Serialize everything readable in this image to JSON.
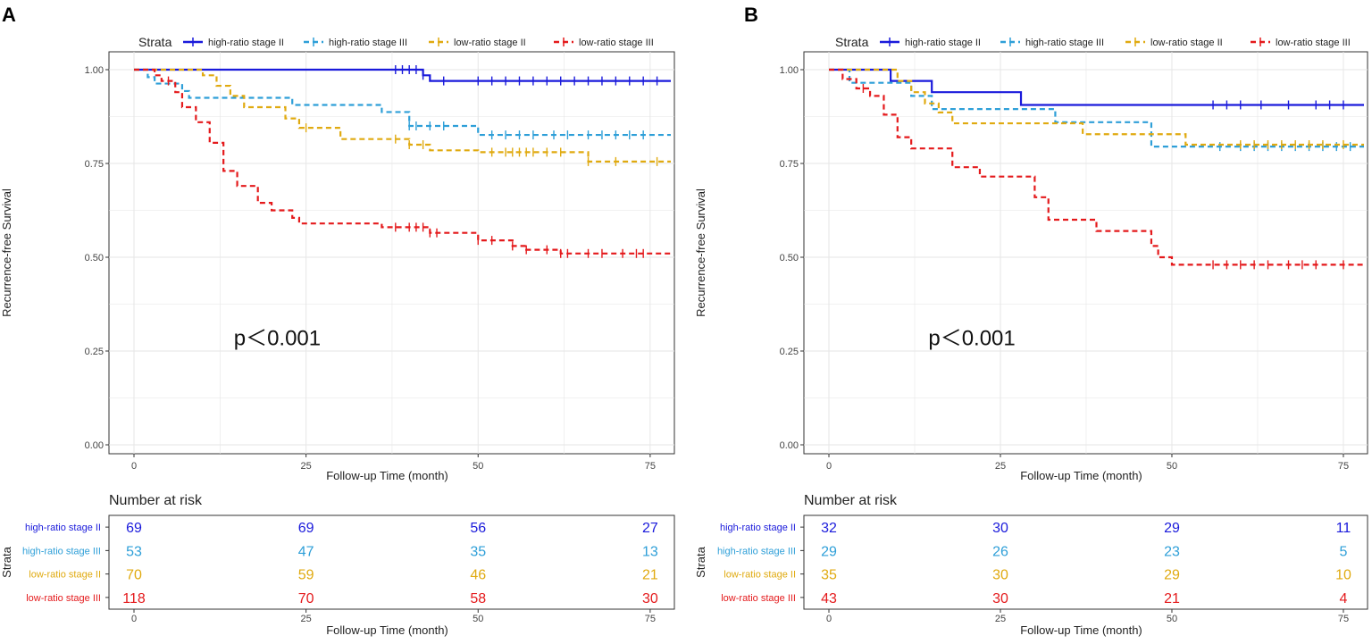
{
  "colors": {
    "high_ratio_stage_II": "#1a1adb",
    "high_ratio_stage_III": "#2e9fd8",
    "low_ratio_stage_II": "#e0aa10",
    "low_ratio_stage_III": "#e41a1c",
    "grid": "#e6e6e6",
    "axis": "#333333"
  },
  "legend_title": "Strata",
  "strata_axis_label": "Strata",
  "risk_title": "Number at risk",
  "chart_data": [
    {
      "panel": "A",
      "type": "line",
      "title": "",
      "xlabel": "Follow-up Time (month)",
      "ylabel": "Recurrence-free Survival",
      "xlim": [
        0,
        78
      ],
      "ylim": [
        0,
        1
      ],
      "xticks": [
        "0",
        "25",
        "50",
        "75"
      ],
      "yticks": [
        "0.00",
        "0.25",
        "0.50",
        "0.75",
        "1.00"
      ],
      "annotation": "p＜0.001",
      "series": [
        {
          "name": "high-ratio stage II",
          "color_key": "high_ratio_stage_II",
          "dash": "",
          "steps": [
            [
              0,
              1.0
            ],
            [
              42,
              0.985
            ],
            [
              43,
              0.97
            ],
            [
              78,
              0.97
            ]
          ],
          "censors": [
            38,
            39,
            40,
            41,
            42,
            45,
            50,
            52,
            54,
            56,
            58,
            60,
            62,
            64,
            66,
            68,
            70,
            72,
            74,
            76
          ]
        },
        {
          "name": "high-ratio stage III",
          "color_key": "high_ratio_stage_III",
          "dash": "6,4",
          "steps": [
            [
              0,
              1.0
            ],
            [
              2,
              0.98
            ],
            [
              3,
              0.963
            ],
            [
              7,
              0.943
            ],
            [
              8,
              0.925
            ],
            [
              23,
              0.906
            ],
            [
              36,
              0.887
            ],
            [
              40,
              0.85
            ],
            [
              50,
              0.826
            ],
            [
              78,
              0.826
            ]
          ],
          "censors": [
            40,
            41,
            43,
            45,
            52,
            54,
            56,
            58,
            61,
            63,
            66,
            68,
            70,
            72,
            74
          ]
        },
        {
          "name": "low-ratio stage II",
          "color_key": "low_ratio_stage_II",
          "dash": "6,4",
          "steps": [
            [
              0,
              1.0
            ],
            [
              10,
              0.985
            ],
            [
              12,
              0.957
            ],
            [
              14,
              0.93
            ],
            [
              16,
              0.9
            ],
            [
              22,
              0.87
            ],
            [
              24,
              0.845
            ],
            [
              30,
              0.815
            ],
            [
              40,
              0.8
            ],
            [
              43,
              0.785
            ],
            [
              50,
              0.78
            ],
            [
              66,
              0.755
            ],
            [
              78,
              0.755
            ]
          ],
          "censors": [
            25,
            38,
            40,
            42,
            52,
            54,
            55,
            56,
            57,
            58,
            60,
            62,
            66,
            70,
            76
          ]
        },
        {
          "name": "low-ratio stage III",
          "color_key": "low_ratio_stage_III",
          "dash": "6,4",
          "steps": [
            [
              0,
              1.0
            ],
            [
              3,
              0.985
            ],
            [
              4,
              0.97
            ],
            [
              6,
              0.94
            ],
            [
              7,
              0.9
            ],
            [
              9,
              0.86
            ],
            [
              11,
              0.805
            ],
            [
              13,
              0.73
            ],
            [
              15,
              0.69
            ],
            [
              18,
              0.645
            ],
            [
              20,
              0.625
            ],
            [
              23,
              0.605
            ],
            [
              24,
              0.59
            ],
            [
              36,
              0.58
            ],
            [
              43,
              0.565
            ],
            [
              50,
              0.545
            ],
            [
              55,
              0.53
            ],
            [
              57,
              0.52
            ],
            [
              62,
              0.51
            ],
            [
              78,
              0.505
            ]
          ],
          "censors": [
            5,
            38,
            40,
            41,
            42,
            43,
            44,
            50,
            52,
            55,
            57,
            60,
            62,
            63,
            66,
            68,
            71,
            73,
            74
          ]
        }
      ],
      "risk_table": {
        "xticks": [
          "0",
          "25",
          "50",
          "75"
        ],
        "rows": [
          {
            "label": "high-ratio stage II",
            "color_key": "high_ratio_stage_II",
            "values": [
              "69",
              "69",
              "56",
              "27"
            ]
          },
          {
            "label": "high-ratio stage III",
            "color_key": "high_ratio_stage_III",
            "values": [
              "53",
              "47",
              "35",
              "13"
            ]
          },
          {
            "label": "low-ratio stage II",
            "color_key": "low_ratio_stage_II",
            "values": [
              "70",
              "59",
              "46",
              "21"
            ]
          },
          {
            "label": "low-ratio stage III",
            "color_key": "low_ratio_stage_III",
            "values": [
              "118",
              "70",
              "58",
              "30"
            ]
          }
        ],
        "xlabel": "Follow-up Time (month)"
      }
    },
    {
      "panel": "B",
      "type": "line",
      "title": "",
      "xlabel": "Follow-up Time (month)",
      "ylabel": "Recurrence-free Survival",
      "xlim": [
        0,
        78
      ],
      "ylim": [
        0,
        1
      ],
      "xticks": [
        "0",
        "25",
        "50",
        "75"
      ],
      "yticks": [
        "0.00",
        "0.25",
        "0.50",
        "0.75",
        "1.00"
      ],
      "annotation": "p＜0.001",
      "series": [
        {
          "name": "high-ratio stage II",
          "color_key": "high_ratio_stage_II",
          "dash": "",
          "steps": [
            [
              0,
              1.0
            ],
            [
              9,
              0.97
            ],
            [
              15,
              0.94
            ],
            [
              28,
              0.906
            ],
            [
              78,
              0.906
            ]
          ],
          "censors": [
            56,
            58,
            60,
            63,
            67,
            71,
            73,
            75
          ]
        },
        {
          "name": "high-ratio stage III",
          "color_key": "high_ratio_stage_III",
          "dash": "6,4",
          "steps": [
            [
              0,
              1.0
            ],
            [
              3,
              0.965
            ],
            [
              12,
              0.93
            ],
            [
              15,
              0.895
            ],
            [
              33,
              0.86
            ],
            [
              47,
              0.795
            ],
            [
              78,
              0.795
            ]
          ],
          "censors": [
            57,
            60,
            62,
            64,
            66,
            68,
            70,
            72,
            74,
            76
          ]
        },
        {
          "name": "low-ratio stage II",
          "color_key": "low_ratio_stage_II",
          "dash": "6,4",
          "steps": [
            [
              0,
              1.0
            ],
            [
              10,
              0.97
            ],
            [
              12,
              0.94
            ],
            [
              14,
              0.91
            ],
            [
              16,
              0.886
            ],
            [
              18,
              0.857
            ],
            [
              37,
              0.828
            ],
            [
              47,
              0.828
            ],
            [
              52,
              0.8
            ],
            [
              78,
              0.8
            ]
          ],
          "censors": [
            60,
            62,
            64,
            66,
            68,
            70,
            72,
            75
          ]
        },
        {
          "name": "low-ratio stage III",
          "color_key": "low_ratio_stage_III",
          "dash": "6,4",
          "steps": [
            [
              0,
              1.0
            ],
            [
              2,
              0.975
            ],
            [
              4,
              0.95
            ],
            [
              6,
              0.93
            ],
            [
              8,
              0.88
            ],
            [
              10,
              0.82
            ],
            [
              12,
              0.79
            ],
            [
              18,
              0.74
            ],
            [
              22,
              0.715
            ],
            [
              30,
              0.66
            ],
            [
              32,
              0.6
            ],
            [
              39,
              0.57
            ],
            [
              47,
              0.53
            ],
            [
              48,
              0.5
            ],
            [
              50,
              0.48
            ],
            [
              78,
              0.48
            ]
          ],
          "censors": [
            5,
            56,
            58,
            60,
            62,
            64,
            67,
            69,
            71,
            75
          ]
        }
      ],
      "risk_table": {
        "xticks": [
          "0",
          "25",
          "50",
          "75"
        ],
        "rows": [
          {
            "label": "high-ratio stage II",
            "color_key": "high_ratio_stage_II",
            "values": [
              "32",
              "30",
              "29",
              "11"
            ]
          },
          {
            "label": "high-ratio stage III",
            "color_key": "high_ratio_stage_III",
            "values": [
              "29",
              "26",
              "23",
              "5"
            ]
          },
          {
            "label": "low-ratio stage II",
            "color_key": "low_ratio_stage_II",
            "values": [
              "35",
              "30",
              "29",
              "10"
            ]
          },
          {
            "label": "low-ratio stage III",
            "color_key": "low_ratio_stage_III",
            "values": [
              "43",
              "30",
              "21",
              "4"
            ]
          }
        ],
        "xlabel": "Follow-up Time (month)"
      }
    }
  ]
}
